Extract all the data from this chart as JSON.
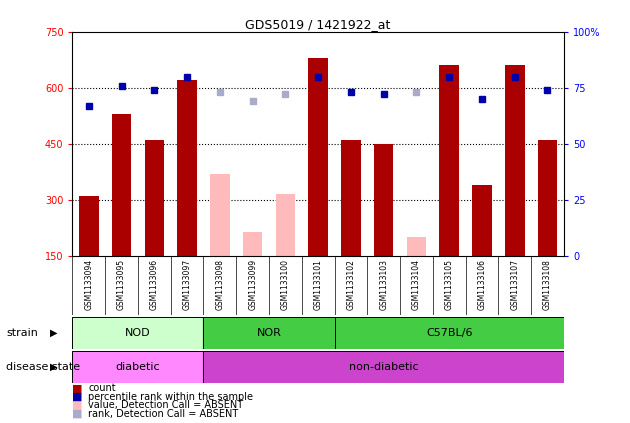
{
  "title": "GDS5019 / 1421922_at",
  "samples": [
    "GSM1133094",
    "GSM1133095",
    "GSM1133096",
    "GSM1133097",
    "GSM1133098",
    "GSM1133099",
    "GSM1133100",
    "GSM1133101",
    "GSM1133102",
    "GSM1133103",
    "GSM1133104",
    "GSM1133105",
    "GSM1133106",
    "GSM1133107",
    "GSM1133108"
  ],
  "bar_values": [
    310,
    530,
    460,
    620,
    370,
    215,
    315,
    680,
    460,
    450,
    200,
    660,
    340,
    660,
    460
  ],
  "bar_absent": [
    false,
    false,
    false,
    false,
    true,
    true,
    true,
    false,
    false,
    false,
    true,
    false,
    false,
    false,
    false
  ],
  "rank_values": [
    67,
    76,
    74,
    80,
    73,
    69,
    72,
    80,
    73,
    72,
    73,
    80,
    70,
    80,
    74
  ],
  "rank_absent": [
    false,
    false,
    false,
    false,
    true,
    true,
    true,
    false,
    false,
    false,
    true,
    false,
    false,
    false,
    false
  ],
  "ylim_left": [
    150,
    750
  ],
  "yticks_left": [
    150,
    300,
    450,
    600,
    750
  ],
  "yticks_right_vals": [
    0,
    25,
    50,
    75,
    100
  ],
  "yticks_right_labels": [
    "0",
    "25",
    "50",
    "75",
    "100%"
  ],
  "bar_color_present": "#aa0000",
  "bar_color_absent": "#ffbbbb",
  "dot_color_present": "#0000aa",
  "dot_color_absent": "#aaaacc",
  "strain_groups": [
    {
      "label": "NOD",
      "start": 0,
      "end": 4,
      "color": "#ccffcc"
    },
    {
      "label": "NOR",
      "start": 4,
      "end": 8,
      "color": "#44cc44"
    },
    {
      "label": "C57BL/6",
      "start": 8,
      "end": 15,
      "color": "#44cc44"
    }
  ],
  "disease_groups": [
    {
      "label": "diabetic",
      "start": 0,
      "end": 4,
      "color": "#ff88ff"
    },
    {
      "label": "non-diabetic",
      "start": 4,
      "end": 15,
      "color": "#cc44cc"
    }
  ],
  "strain_label": "strain",
  "disease_label": "disease state",
  "legend_items": [
    {
      "label": "count",
      "color": "#aa0000"
    },
    {
      "label": "percentile rank within the sample",
      "color": "#0000aa"
    },
    {
      "label": "value, Detection Call = ABSENT",
      "color": "#ffbbbb"
    },
    {
      "label": "rank, Detection Call = ABSENT",
      "color": "#aaaacc"
    }
  ]
}
